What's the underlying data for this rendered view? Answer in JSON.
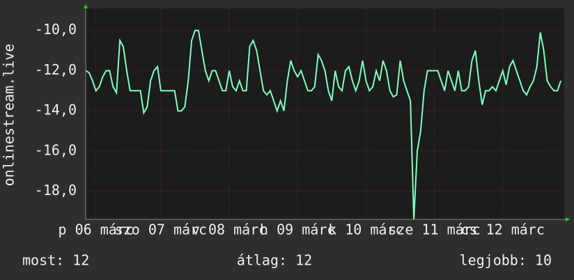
{
  "chart_data": {
    "type": "line",
    "y_label": "onlinestream.live",
    "ylim": [
      -19.4,
      -8.9
    ],
    "yticks": [
      {
        "value": -10,
        "label": "-10,0"
      },
      {
        "value": -12,
        "label": "-12,0"
      },
      {
        "value": -14,
        "label": "-14,0"
      },
      {
        "value": -16,
        "label": "-16,0"
      },
      {
        "value": -18,
        "label": "-18,0"
      }
    ],
    "xlim": [
      0,
      140
    ],
    "xticks": [
      {
        "value": 3,
        "label": "p 06 márc"
      },
      {
        "value": 22,
        "label": "szo 07 márc"
      },
      {
        "value": 42,
        "label": "v 08 márc"
      },
      {
        "value": 62,
        "label": "h 09 márc"
      },
      {
        "value": 82,
        "label": "k 10 márc"
      },
      {
        "value": 102,
        "label": "sze 11 márc"
      },
      {
        "value": 122,
        "label": "cs 12 márc"
      }
    ],
    "grid": true,
    "color": "#7fffbf",
    "values": [
      -12,
      -12.1,
      -12.5,
      -13,
      -12.8,
      -12.3,
      -12,
      -12,
      -12.8,
      -13.1,
      -10.5,
      -10.8,
      -12,
      -13,
      -13,
      -13,
      -13,
      -14.1,
      -13.8,
      -12.5,
      -12,
      -11.8,
      -13,
      -13,
      -13,
      -13,
      -13,
      -14,
      -14,
      -13.8,
      -12.5,
      -10.5,
      -10,
      -10,
      -11,
      -12,
      -12.5,
      -12,
      -12,
      -12.5,
      -13,
      -13,
      -12,
      -12.8,
      -13,
      -12.5,
      -13,
      -13,
      -10.8,
      -10.5,
      -11,
      -12,
      -13,
      -13.2,
      -13,
      -13.5,
      -14,
      -13.5,
      -14,
      -12.5,
      -11.5,
      -12,
      -12.3,
      -12,
      -12.5,
      -13,
      -13,
      -12.8,
      -11.2,
      -11.5,
      -12,
      -13,
      -13.5,
      -12,
      -12.8,
      -13,
      -12,
      -11.8,
      -12.5,
      -13,
      -12.5,
      -11.5,
      -12.5,
      -13,
      -12.8,
      -12,
      -12.5,
      -11.5,
      -12,
      -13,
      -13.3,
      -13.2,
      -11.5,
      -12.5,
      -13,
      -13.5,
      -19.4,
      -16,
      -15,
      -13,
      -12,
      -12,
      -12,
      -12,
      -12.5,
      -13,
      -12,
      -12.5,
      -13,
      -12,
      -13,
      -13,
      -12.8,
      -11.5,
      -11,
      -12.5,
      -13.7,
      -13,
      -13,
      -12.8,
      -13,
      -12.5,
      -12,
      -12.7,
      -11.8,
      -11.5,
      -12,
      -12.5,
      -13,
      -13.2,
      -12.8,
      -12.5,
      -11.8,
      -10.1,
      -11,
      -12.5,
      -12.8,
      -13,
      -13,
      -12.5
    ],
    "summary": [
      "most: 12",
      "átlag: 12",
      "legjobb: 10"
    ]
  }
}
